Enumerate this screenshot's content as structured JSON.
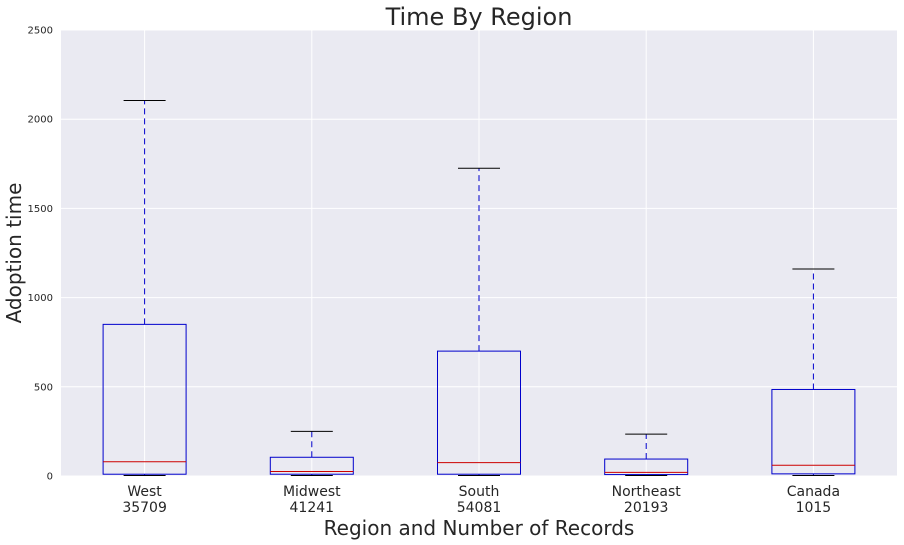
{
  "chart_data": {
    "type": "box",
    "title": "Time By Region",
    "xlabel": "Region and Number of Records",
    "ylabel": "Adoption time",
    "ylim": [
      0,
      2500
    ],
    "yticks": [
      0,
      500,
      1000,
      1500,
      2000,
      2500
    ],
    "grid": true,
    "categories": [
      {
        "name": "West",
        "count": "35709"
      },
      {
        "name": "Midwest",
        "count": "41241"
      },
      {
        "name": "South",
        "count": "54081"
      },
      {
        "name": "Northeast",
        "count": "20193"
      },
      {
        "name": "Canada",
        "count": "1015"
      }
    ],
    "boxes": [
      {
        "whisker_low": 0,
        "q1": 10,
        "median": 80,
        "q3": 850,
        "whisker_high": 2105
      },
      {
        "whisker_low": 0,
        "q1": 10,
        "median": 25,
        "q3": 105,
        "whisker_high": 250
      },
      {
        "whisker_low": 0,
        "q1": 10,
        "median": 75,
        "q3": 700,
        "whisker_high": 1725
      },
      {
        "whisker_low": 0,
        "q1": 8,
        "median": 20,
        "q3": 95,
        "whisker_high": 235
      },
      {
        "whisker_low": 0,
        "q1": 12,
        "median": 60,
        "q3": 485,
        "whisker_high": 1160
      }
    ],
    "colors": {
      "plot_background": "#eaeaf2",
      "grid": "#ffffff",
      "box": "#0000cc",
      "median": "#cc0000",
      "cap": "#000000"
    }
  }
}
